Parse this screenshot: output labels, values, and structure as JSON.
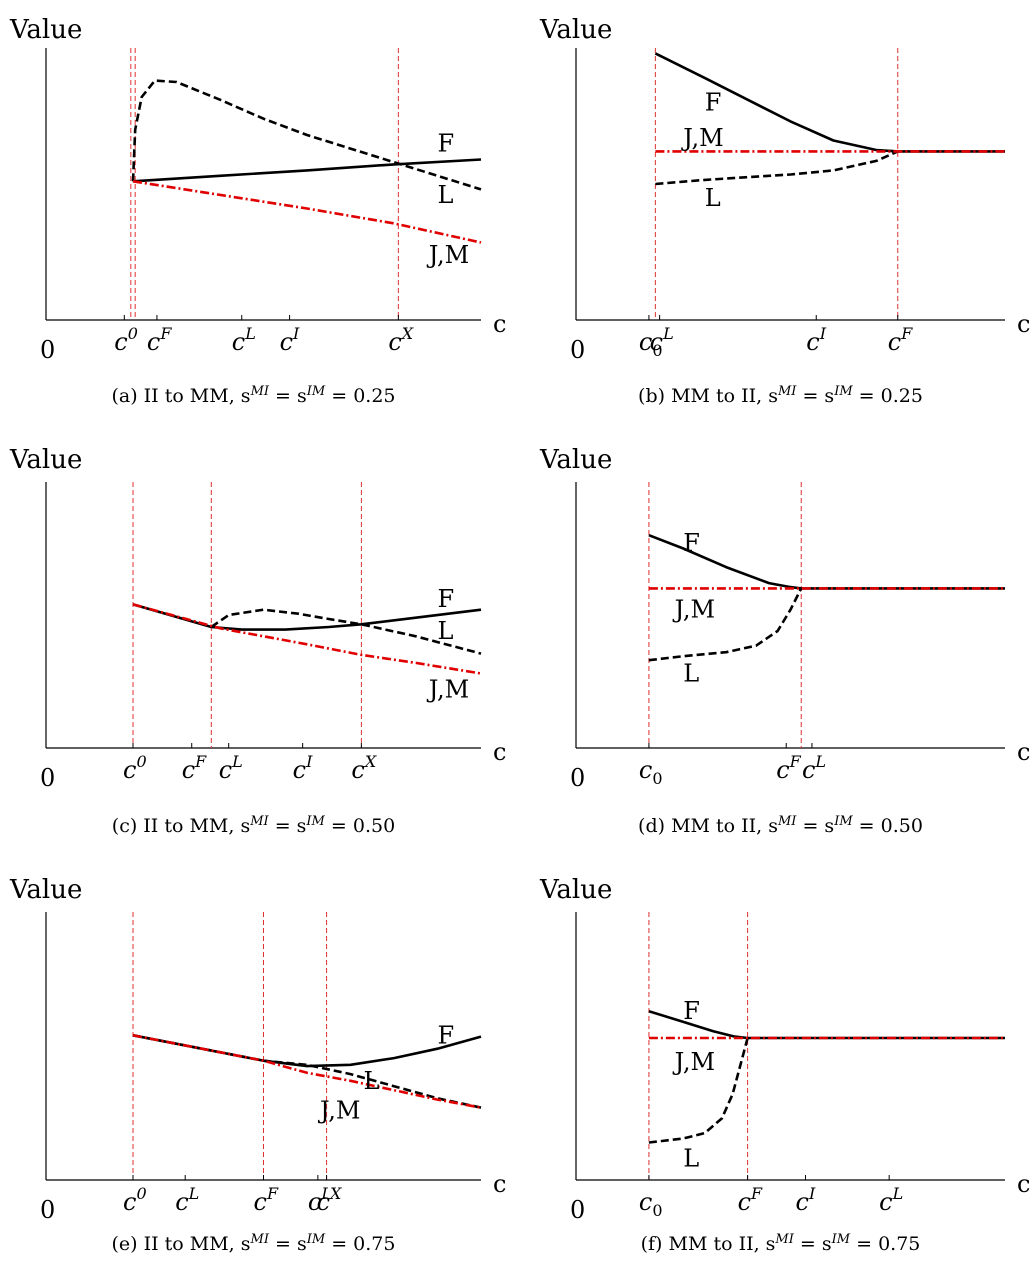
{
  "chart_data": [
    {
      "id": "a",
      "type": "line",
      "ylabel": "Value",
      "xlabel": "c",
      "origin_label": "0",
      "caption": "(a) II to MM, s^{MI} = s^{IM} = 0.25",
      "xlim": [
        0,
        10
      ],
      "ylim": [
        0,
        10
      ],
      "vlines": [
        1.95,
        2.05,
        8.1
      ],
      "ticks": [
        {
          "x": 1.8,
          "base": "c",
          "sup": "0",
          "sub": ""
        },
        {
          "x": 2.55,
          "base": "c",
          "sup": "F",
          "sub": ""
        },
        {
          "x": 4.5,
          "base": "c",
          "sup": "L",
          "sub": ""
        },
        {
          "x": 5.6,
          "base": "c",
          "sup": "I",
          "sub": ""
        },
        {
          "x": 8.1,
          "base": "c",
          "sup": "X",
          "sub": ""
        }
      ],
      "series": [
        {
          "name": "F",
          "style": "solid",
          "color": "#000000",
          "x": [
            2.0,
            4.0,
            6.0,
            8.0,
            10.0
          ],
          "y": [
            5.1,
            5.3,
            5.5,
            5.72,
            5.9
          ]
        },
        {
          "name": "L",
          "style": "dashed",
          "color": "#000000",
          "x": [
            2.0,
            2.05,
            2.2,
            2.5,
            3.0,
            4.0,
            5.0,
            6.0,
            7.0,
            8.0,
            9.0,
            10.0
          ],
          "y": [
            5.1,
            7.0,
            8.2,
            8.8,
            8.75,
            8.1,
            7.4,
            6.8,
            6.3,
            5.8,
            5.3,
            4.8
          ]
        },
        {
          "name": "J,M",
          "style": "dashdot",
          "color": "#e00000",
          "x": [
            2.0,
            4.0,
            6.0,
            8.0,
            10.0
          ],
          "y": [
            5.1,
            4.6,
            4.1,
            3.55,
            2.85
          ]
        }
      ],
      "curve_labels": [
        {
          "text": "F",
          "x": 9.0,
          "y": 6.2
        },
        {
          "text": "L",
          "x": 9.0,
          "y": 4.3
        },
        {
          "text": "J,M",
          "x": 8.8,
          "y": 2.1
        }
      ]
    },
    {
      "id": "b",
      "type": "line",
      "ylabel": "Value",
      "xlabel": "c",
      "origin_label": "0",
      "caption": "(b) MM to II, s^{MI} = s^{IM} = 0.25",
      "xlim": [
        0,
        10
      ],
      "ylim": [
        0,
        10
      ],
      "vlines": [
        1.85,
        7.5
      ],
      "ticks": [
        {
          "x": 1.7,
          "base": "c",
          "sup": "",
          "sub": "0"
        },
        {
          "x": 1.95,
          "base": "c",
          "sup": "L",
          "sub": ""
        },
        {
          "x": 5.6,
          "base": "c",
          "sup": "I",
          "sub": ""
        },
        {
          "x": 7.5,
          "base": "c",
          "sup": "F",
          "sub": ""
        }
      ],
      "series": [
        {
          "name": "F",
          "style": "solid",
          "color": "#000000",
          "x": [
            1.85,
            3.0,
            4.0,
            5.0,
            6.0,
            7.0,
            7.5,
            10.0
          ],
          "y": [
            9.8,
            8.9,
            8.1,
            7.3,
            6.6,
            6.25,
            6.2,
            6.2
          ]
        },
        {
          "name": "L",
          "style": "dashed",
          "color": "#000000",
          "x": [
            1.85,
            3.0,
            4.0,
            5.0,
            6.0,
            7.0,
            7.5
          ],
          "y": [
            5.0,
            5.15,
            5.25,
            5.35,
            5.5,
            5.85,
            6.2
          ]
        },
        {
          "name": "J,M",
          "style": "dashdot",
          "color": "#e00000",
          "x": [
            1.85,
            10.0
          ],
          "y": [
            6.2,
            6.2
          ]
        }
      ],
      "curve_labels": [
        {
          "text": "F",
          "x": 3.0,
          "y": 7.7
        },
        {
          "text": "J,M",
          "x": 2.5,
          "y": 6.4
        },
        {
          "text": "L",
          "x": 3.0,
          "y": 4.2
        }
      ]
    },
    {
      "id": "c",
      "type": "line",
      "ylabel": "Value",
      "xlabel": "c",
      "origin_label": "0",
      "caption": "(c) II to MM, s^{MI} = s^{IM} = 0.50",
      "xlim": [
        0,
        10
      ],
      "ylim": [
        0,
        10
      ],
      "vlines": [
        2.0,
        3.8,
        7.25
      ],
      "ticks": [
        {
          "x": 2.0,
          "base": "c",
          "sup": "0",
          "sub": ""
        },
        {
          "x": 3.35,
          "base": "c",
          "sup": "F",
          "sub": ""
        },
        {
          "x": 4.2,
          "base": "c",
          "sup": "L",
          "sub": ""
        },
        {
          "x": 5.9,
          "base": "c",
          "sup": "I",
          "sub": ""
        },
        {
          "x": 7.25,
          "base": "c",
          "sup": "X",
          "sub": ""
        }
      ],
      "series": [
        {
          "name": "F",
          "style": "solid",
          "color": "#000000",
          "x": [
            2.0,
            3.8,
            4.5,
            5.5,
            6.5,
            7.25,
            8.5,
            10.0
          ],
          "y": [
            5.4,
            4.55,
            4.45,
            4.45,
            4.55,
            4.65,
            4.9,
            5.2
          ]
        },
        {
          "name": "L",
          "style": "dashed",
          "color": "#000000",
          "x": [
            3.8,
            4.2,
            5.0,
            5.8,
            6.5,
            7.25,
            8.5,
            10.0
          ],
          "y": [
            4.55,
            5.0,
            5.2,
            5.05,
            4.85,
            4.65,
            4.2,
            3.55
          ]
        },
        {
          "name": "J,M",
          "style": "dashdot",
          "color": "#e00000",
          "x": [
            2.0,
            4.0,
            6.0,
            7.25,
            8.5,
            10.0
          ],
          "y": [
            5.4,
            4.5,
            3.9,
            3.5,
            3.2,
            2.8
          ]
        }
      ],
      "curve_labels": [
        {
          "text": "F",
          "x": 9.0,
          "y": 5.3
        },
        {
          "text": "L",
          "x": 9.0,
          "y": 4.1
        },
        {
          "text": "J,M",
          "x": 8.8,
          "y": 1.9
        }
      ]
    },
    {
      "id": "d",
      "type": "line",
      "ylabel": "Value",
      "xlabel": "c",
      "origin_label": "0",
      "caption": "(d) MM to II, s^{MI} = s^{IM} = 0.50",
      "xlim": [
        0,
        10
      ],
      "ylim": [
        0,
        10
      ],
      "vlines": [
        1.7,
        5.25
      ],
      "ticks": [
        {
          "x": 1.7,
          "base": "c",
          "sup": "",
          "sub": "0"
        },
        {
          "x": 4.9,
          "base": "c",
          "sup": "F",
          "sub": ""
        },
        {
          "x": 5.5,
          "base": "c",
          "sup": "L",
          "sub": ""
        }
      ],
      "series": [
        {
          "name": "F",
          "style": "solid",
          "color": "#000000",
          "x": [
            1.7,
            2.5,
            3.5,
            4.5,
            5.0,
            5.25,
            10.0
          ],
          "y": [
            8.0,
            7.5,
            6.8,
            6.2,
            6.05,
            6.0,
            6.0
          ]
        },
        {
          "name": "L",
          "style": "dashed",
          "color": "#000000",
          "x": [
            1.7,
            2.5,
            3.5,
            4.2,
            4.7,
            5.0,
            5.25
          ],
          "y": [
            3.3,
            3.45,
            3.6,
            3.85,
            4.4,
            5.2,
            6.0
          ]
        },
        {
          "name": "J,M",
          "style": "dashdot",
          "color": "#e00000",
          "x": [
            1.7,
            10.0
          ],
          "y": [
            6.0,
            6.0
          ]
        }
      ],
      "curve_labels": [
        {
          "text": "F",
          "x": 2.5,
          "y": 7.4
        },
        {
          "text": "J,M",
          "x": 2.3,
          "y": 4.9
        },
        {
          "text": "L",
          "x": 2.5,
          "y": 2.5
        }
      ]
    },
    {
      "id": "e",
      "type": "line",
      "ylabel": "Value",
      "xlabel": "c",
      "origin_label": "0",
      "caption": "(e) II to MM, s^{MI} = s^{IM} = 0.75",
      "xlim": [
        0,
        10
      ],
      "ylim": [
        0,
        10
      ],
      "vlines": [
        2.0,
        5.0,
        6.45
      ],
      "ticks": [
        {
          "x": 2.0,
          "base": "c",
          "sup": "0",
          "sub": ""
        },
        {
          "x": 3.2,
          "base": "c",
          "sup": "L",
          "sub": ""
        },
        {
          "x": 5.0,
          "base": "c",
          "sup": "F",
          "sub": ""
        },
        {
          "x": 6.25,
          "base": "c",
          "sup": "I",
          "sub": ""
        },
        {
          "x": 6.45,
          "base": "c",
          "sup": "X",
          "sub": ""
        }
      ],
      "series": [
        {
          "name": "F",
          "style": "solid",
          "color": "#000000",
          "x": [
            2.0,
            5.0,
            6.0,
            7.0,
            8.0,
            9.0,
            10.0
          ],
          "y": [
            5.4,
            4.45,
            4.25,
            4.3,
            4.55,
            4.9,
            5.35
          ]
        },
        {
          "name": "L",
          "style": "dashed",
          "color": "#000000",
          "x": [
            2.0,
            5.0,
            6.0,
            7.0,
            8.0,
            9.0,
            10.0
          ],
          "y": [
            5.4,
            4.45,
            4.3,
            3.95,
            3.5,
            3.05,
            2.7
          ]
        },
        {
          "name": "J,M",
          "style": "dashdot",
          "color": "#e00000",
          "x": [
            2.0,
            5.0,
            6.0,
            7.0,
            8.0,
            9.0,
            10.0
          ],
          "y": [
            5.4,
            4.45,
            4.0,
            3.7,
            3.35,
            3.0,
            2.7
          ]
        }
      ],
      "curve_labels": [
        {
          "text": "F",
          "x": 9.0,
          "y": 5.1
        },
        {
          "text": "L",
          "x": 7.3,
          "y": 3.4
        },
        {
          "text": "J,M",
          "x": 6.3,
          "y": 2.3
        }
      ]
    },
    {
      "id": "f",
      "type": "line",
      "ylabel": "Value",
      "xlabel": "c",
      "origin_label": "0",
      "caption": "(f) MM to II, s^{MI} = s^{IM} = 0.75",
      "xlim": [
        0,
        10
      ],
      "ylim": [
        0,
        10
      ],
      "vlines": [
        1.7,
        4.0
      ],
      "ticks": [
        {
          "x": 1.7,
          "base": "c",
          "sup": "",
          "sub": "0"
        },
        {
          "x": 4.0,
          "base": "c",
          "sup": "F",
          "sub": ""
        },
        {
          "x": 5.35,
          "base": "c",
          "sup": "I",
          "sub": ""
        },
        {
          "x": 7.3,
          "base": "c",
          "sup": "L",
          "sub": ""
        }
      ],
      "series": [
        {
          "name": "F",
          "style": "solid",
          "color": "#000000",
          "x": [
            1.7,
            2.5,
            3.2,
            3.7,
            4.0,
            10.0
          ],
          "y": [
            6.3,
            5.9,
            5.55,
            5.35,
            5.3,
            5.3
          ]
        },
        {
          "name": "L",
          "style": "dashed",
          "color": "#000000",
          "x": [
            1.7,
            2.5,
            3.0,
            3.4,
            3.65,
            3.85,
            4.0
          ],
          "y": [
            1.4,
            1.55,
            1.75,
            2.3,
            3.2,
            4.4,
            5.3
          ]
        },
        {
          "name": "J,M",
          "style": "dashdot",
          "color": "#e00000",
          "x": [
            1.7,
            10.0
          ],
          "y": [
            5.3,
            5.3
          ]
        }
      ],
      "curve_labels": [
        {
          "text": "F",
          "x": 2.5,
          "y": 6.0
        },
        {
          "text": "J,M",
          "x": 2.3,
          "y": 4.1
        },
        {
          "text": "L",
          "x": 2.5,
          "y": 0.5
        }
      ]
    }
  ]
}
